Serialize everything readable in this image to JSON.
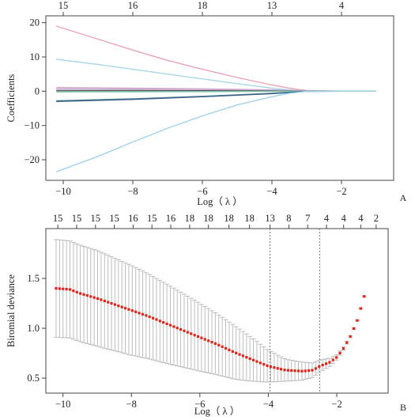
{
  "chart_data": [
    {
      "type": "line",
      "panel_label": "A",
      "xlabel": "Log（ λ ）",
      "ylabel": "Coefficients",
      "xlim": [
        -10.5,
        -0.5
      ],
      "ylim": [
        -26,
        22
      ],
      "x_ticks": [
        -10,
        -8,
        -6,
        -4,
        -2
      ],
      "x_tick_labels": [
        "−10",
        "−8",
        "−6",
        "−4",
        "−2"
      ],
      "y_ticks": [
        20,
        10,
        0,
        -10,
        -20
      ],
      "y_tick_labels": [
        "20",
        "10",
        "0",
        "−10",
        "−20"
      ],
      "top_ticks": [
        {
          "x": -10,
          "label": "15"
        },
        {
          "x": -8,
          "label": "16"
        },
        {
          "x": -6,
          "label": "18"
        },
        {
          "x": -4,
          "label": "13"
        },
        {
          "x": -2,
          "label": "4"
        }
      ],
      "grid": false,
      "series": [
        {
          "color": "#e8a3b6",
          "x": [
            -10.2,
            -9,
            -8,
            -7,
            -6,
            -5,
            -4,
            -3.5,
            -3,
            -2,
            -1
          ],
          "y": [
            19,
            15.2,
            12,
            9,
            6.4,
            4,
            1.8,
            0.9,
            0.2,
            0,
            0
          ]
        },
        {
          "color": "#a8d7e6",
          "x": [
            -10.2,
            -9,
            -8,
            -7,
            -6,
            -5,
            -4,
            -3.5,
            -3,
            -2,
            -1
          ],
          "y": [
            9.3,
            7.8,
            6.4,
            5,
            3.6,
            2.2,
            0.9,
            0.4,
            0,
            0,
            0
          ]
        },
        {
          "color": "#d9a7c3",
          "x": [
            -10.2,
            -8,
            -6,
            -4,
            -3,
            -2,
            -1
          ],
          "y": [
            1.1,
            0.9,
            0.7,
            0.4,
            0.1,
            0,
            0
          ]
        },
        {
          "color": "#c7a6d6",
          "x": [
            -10.2,
            -8,
            -6,
            -4,
            -3,
            -2,
            -1
          ],
          "y": [
            0.7,
            0.6,
            0.5,
            0.3,
            0.05,
            0,
            0
          ]
        },
        {
          "color": "#555555",
          "x": [
            -10.2,
            -8,
            -6,
            -4,
            -3,
            -2,
            -1
          ],
          "y": [
            0.2,
            0.2,
            0.15,
            0.1,
            0.02,
            0,
            0
          ]
        },
        {
          "color": "#79c3a8",
          "x": [
            -10.2,
            -8,
            -6,
            -4,
            -3,
            -2,
            -1
          ],
          "y": [
            -0.2,
            -0.15,
            -0.1,
            -0.05,
            0,
            0,
            0
          ]
        },
        {
          "color": "#4a8a8c",
          "x": [
            -10.2,
            -8,
            -6,
            -4,
            -3,
            -2,
            -1
          ],
          "y": [
            -2.8,
            -2.2,
            -1.5,
            -0.6,
            0,
            0,
            0
          ]
        },
        {
          "color": "#3d5e8a",
          "x": [
            -10.2,
            -8,
            -6,
            -4,
            -3,
            -2,
            -1
          ],
          "y": [
            -3,
            -2.4,
            -1.6,
            -0.7,
            -0.05,
            0,
            0
          ]
        },
        {
          "color": "#9fd2e8",
          "x": [
            -10.2,
            -9,
            -8,
            -7,
            -6,
            -5,
            -4,
            -3.5,
            -3,
            -2,
            -1
          ],
          "y": [
            -23.5,
            -19,
            -14.8,
            -10.8,
            -7.2,
            -4,
            -1.6,
            -0.6,
            -0.05,
            0,
            0
          ]
        }
      ]
    },
    {
      "type": "scatter",
      "panel_label": "B",
      "xlabel": "Log（ λ ）",
      "ylabel": "Biromial deviance",
      "xlim": [
        -10.5,
        -0.5
      ],
      "ylim": [
        0.35,
        2.0
      ],
      "x_ticks": [
        -10,
        -8,
        -6,
        -4,
        -2
      ],
      "x_tick_labels": [
        "−10",
        "−8",
        "−6",
        "−4",
        "−2"
      ],
      "y_ticks": [
        0.5,
        1.0,
        1.5
      ],
      "y_tick_labels": [
        "0.5",
        "1.0",
        "1.5"
      ],
      "top_ticks": [
        {
          "x": -10.15,
          "label": "15"
        },
        {
          "x": -9.6,
          "label": "15"
        },
        {
          "x": -9.05,
          "label": "15"
        },
        {
          "x": -8.5,
          "label": "15"
        },
        {
          "x": -7.95,
          "label": "16"
        },
        {
          "x": -7.4,
          "label": "15"
        },
        {
          "x": -6.85,
          "label": "16"
        },
        {
          "x": -6.3,
          "label": "18"
        },
        {
          "x": -5.75,
          "label": "18"
        },
        {
          "x": -5.15,
          "label": "18"
        },
        {
          "x": -4.55,
          "label": "18"
        },
        {
          "x": -3.95,
          "label": "13"
        },
        {
          "x": -3.4,
          "label": "8"
        },
        {
          "x": -2.85,
          "label": "7"
        },
        {
          "x": -2.3,
          "label": "4"
        },
        {
          "x": -1.8,
          "label": "4"
        },
        {
          "x": -1.3,
          "label": "4"
        },
        {
          "x": -0.85,
          "label": "2"
        }
      ],
      "vlines": [
        -3.95,
        -2.5
      ],
      "point_color": "#e0251c",
      "errorbar_color": "#bdbdbd",
      "grid": false,
      "curve_x": [
        -10.2,
        -9.8,
        -9.5,
        -9,
        -8.5,
        -8,
        -7.5,
        -7,
        -6.5,
        -6,
        -5.5,
        -5,
        -4.5,
        -4,
        -3.5,
        -3,
        -2.7,
        -2.5,
        -2.2,
        -2,
        -1.8,
        -1.6,
        -1.4,
        -1.2
      ],
      "curve_y": [
        1.4,
        1.39,
        1.35,
        1.3,
        1.24,
        1.18,
        1.12,
        1.05,
        0.98,
        0.91,
        0.84,
        0.76,
        0.69,
        0.62,
        0.58,
        0.57,
        0.58,
        0.62,
        0.66,
        0.71,
        0.8,
        0.92,
        1.08,
        1.32
      ],
      "se_x": [
        -10.2,
        -9,
        -8,
        -7,
        -6,
        -5,
        -4.5,
        -4,
        -3.5,
        -3,
        -2.5,
        -2.2,
        -1.9,
        -1.6,
        -1.3
      ],
      "se_y": [
        0.49,
        0.48,
        0.45,
        0.4,
        0.34,
        0.27,
        0.22,
        0.16,
        0.11,
        0.09,
        0.06,
        0.04,
        0.02,
        0.01,
        0.005
      ]
    }
  ]
}
